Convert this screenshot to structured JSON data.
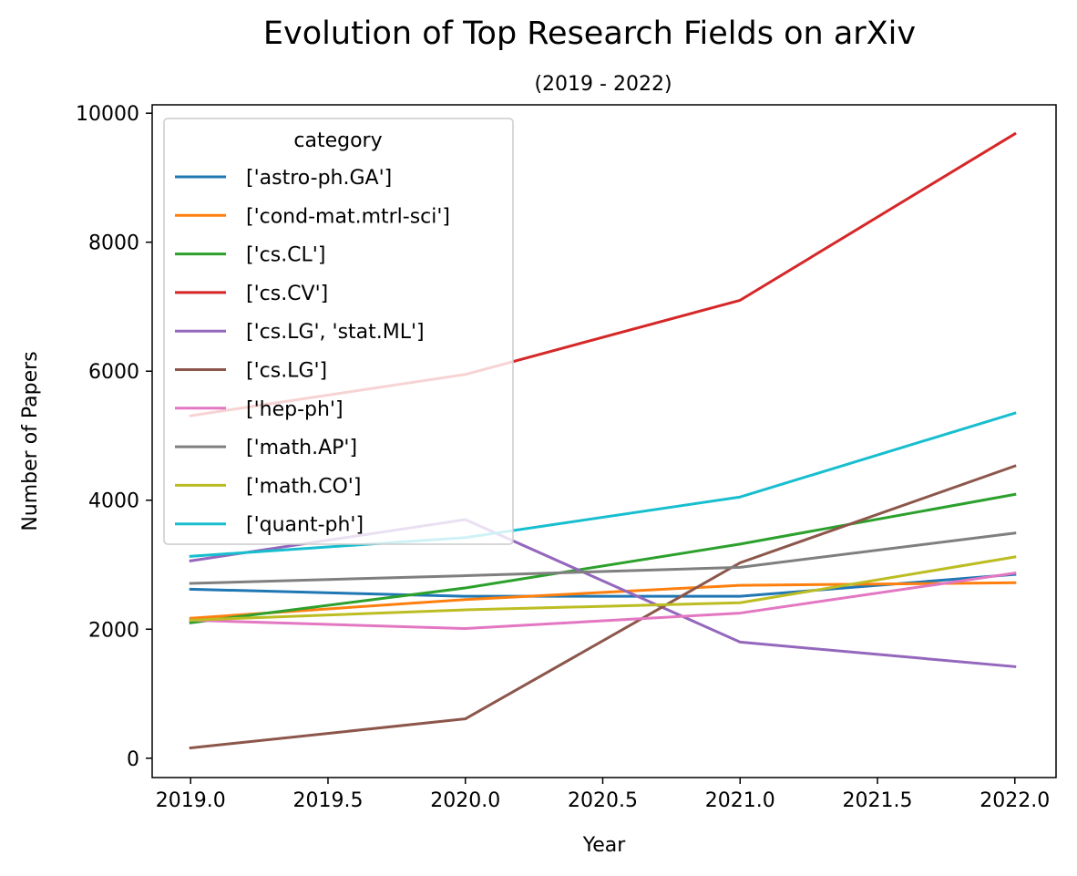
{
  "chart_data": {
    "type": "line",
    "title": "Evolution of Top Research Fields on arXiv",
    "subtitle": "(2019 - 2022)",
    "xlabel": "Year",
    "ylabel": "Number of Papers",
    "xlim": [
      2018.86,
      2022.15
    ],
    "ylim": [
      -300,
      10130
    ],
    "xticks": [
      2019.0,
      2019.5,
      2020.0,
      2020.5,
      2021.0,
      2021.5,
      2022.0
    ],
    "xtick_labels": [
      "2019.0",
      "2019.5",
      "2020.0",
      "2020.5",
      "2021.0",
      "2021.5",
      "2022.0"
    ],
    "yticks": [
      0,
      2000,
      4000,
      6000,
      8000,
      10000
    ],
    "ytick_labels": [
      "0",
      "2000",
      "4000",
      "6000",
      "8000",
      "10000"
    ],
    "grid": false,
    "legend": {
      "title": "category",
      "placement": "upper left"
    },
    "x": [
      2019,
      2020,
      2021,
      2022
    ],
    "series": [
      {
        "name": "['astro-ph.GA']",
        "color": "#1f77b4",
        "values": [
          2620,
          2510,
          2510,
          2850
        ]
      },
      {
        "name": "['cond-mat.mtrl-sci']",
        "color": "#ff7f0e",
        "values": [
          2170,
          2460,
          2680,
          2720
        ]
      },
      {
        "name": "['cs.CL']",
        "color": "#2ca02c",
        "values": [
          2100,
          2640,
          3320,
          4090
        ]
      },
      {
        "name": "['cs.CV']",
        "color": "#d62728",
        "values": [
          5310,
          5950,
          7100,
          9680
        ]
      },
      {
        "name": "['cs.LG', 'stat.ML']",
        "color": "#9467bd",
        "values": [
          3060,
          3700,
          1800,
          1420
        ]
      },
      {
        "name": "['cs.LG']",
        "color": "#8c564b",
        "values": [
          160,
          610,
          3030,
          4530
        ]
      },
      {
        "name": "['hep-ph']",
        "color": "#e377c2",
        "values": [
          2140,
          2010,
          2250,
          2870
        ]
      },
      {
        "name": "['math.AP']",
        "color": "#7f7f7f",
        "values": [
          2710,
          2830,
          2960,
          3490
        ]
      },
      {
        "name": "['math.CO']",
        "color": "#bcbd22",
        "values": [
          2140,
          2300,
          2410,
          3120
        ]
      },
      {
        "name": "['quant-ph']",
        "color": "#17becf",
        "values": [
          3130,
          3420,
          4050,
          5350
        ]
      }
    ]
  }
}
